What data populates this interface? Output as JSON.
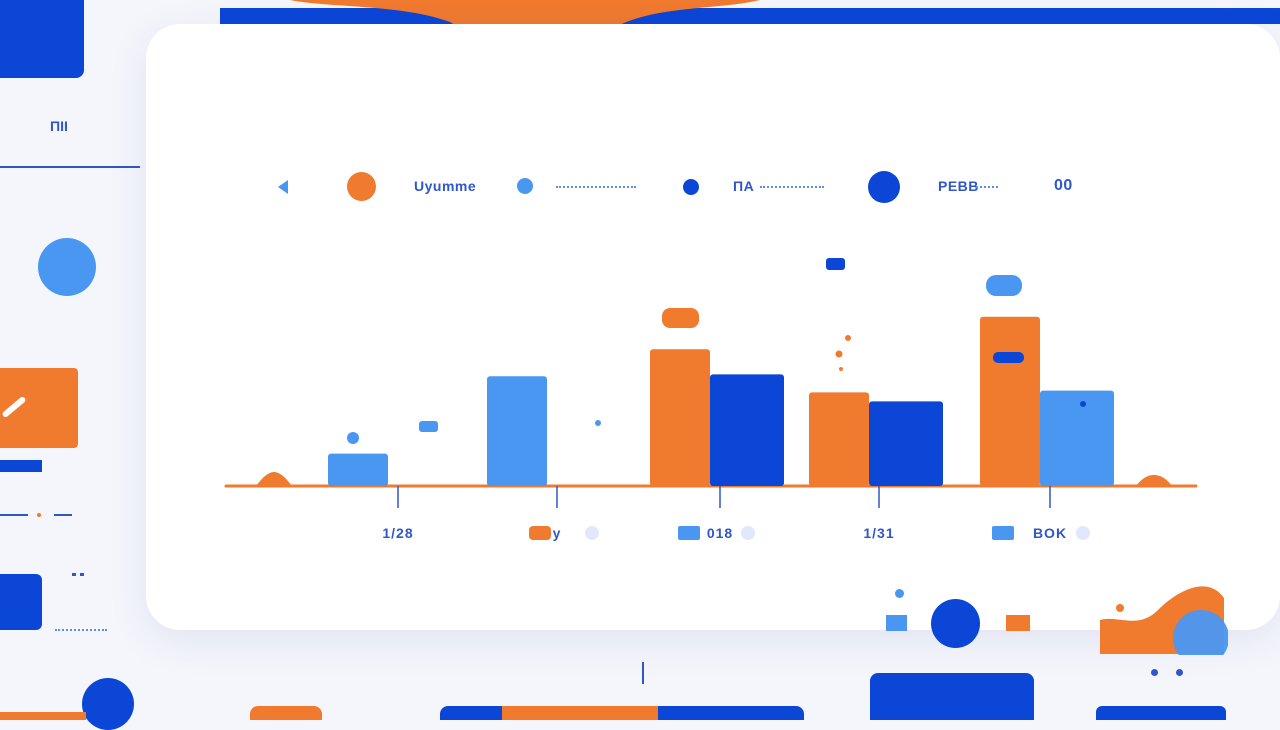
{
  "colors": {
    "orange": "#f07a2e",
    "blue_light": "#4a97f2",
    "blue_dark": "#0b46d6",
    "blue_mid": "#2f57c9",
    "background": "#f5f6fb",
    "card": "#ffffff"
  },
  "icons": {
    "back": "triangle-left-icon",
    "legend_markers": [
      "orange-dot-icon",
      "light-blue-dot-icon",
      "dark-blue-dot-icon",
      "navy-dot-icon"
    ]
  },
  "sidebar": {
    "label": "ΠΙΙ"
  },
  "legend": {
    "items": [
      {
        "label": "Uyumme"
      },
      {
        "label": ""
      },
      {
        "label": "ΠΑ"
      },
      {
        "label": "ΡΕΒΒ"
      },
      {
        "label": "00"
      }
    ]
  },
  "chart_data": {
    "type": "bar",
    "categories": [
      "1/28",
      "y",
      "018",
      "1/31",
      "BOK"
    ],
    "series": [
      {
        "color": "#f07a2e",
        "values": [
          0,
          0,
          7.6,
          5.2,
          9.4
        ]
      },
      {
        "color": "#4a97f2",
        "values": [
          1.8,
          6.1,
          0,
          0,
          5.3
        ]
      },
      {
        "color": "#0b46d6",
        "values": [
          0,
          0,
          6.2,
          4.7,
          0
        ]
      }
    ],
    "title": "",
    "xlabel": "",
    "ylabel": "",
    "ylim": [
      0,
      10
    ],
    "grid": false,
    "legend_position": "top"
  }
}
